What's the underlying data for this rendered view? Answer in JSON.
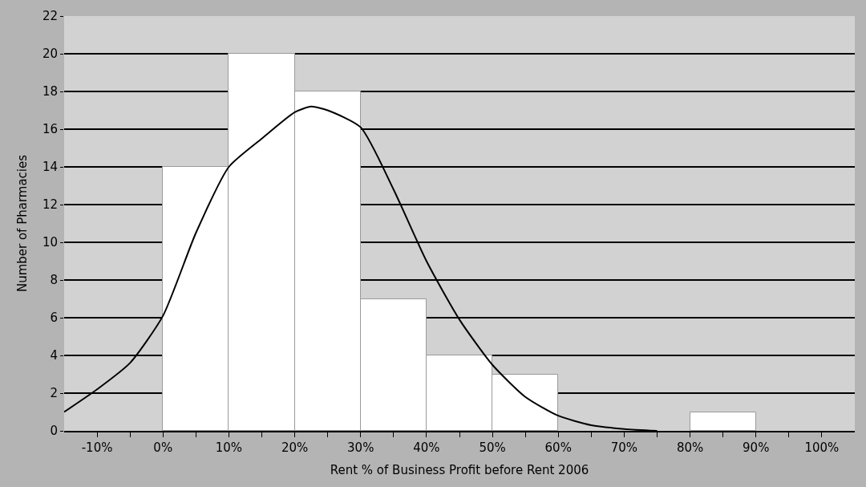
{
  "chart_data": {
    "type": "histogram",
    "xlabel": "Rent % of Business Profit before Rent 2006",
    "ylabel": "Number of Pharmacies",
    "bins": [
      0,
      10,
      20,
      30,
      40,
      50,
      60,
      70,
      80,
      90
    ],
    "series": [
      {
        "color": "#ffffff",
        "values": [
          14,
          20,
          18,
          7,
          4,
          3,
          0,
          0,
          1
        ]
      },
      {
        "type": "line",
        "color": "#000000",
        "x": [
          -15,
          -10,
          -5,
          0,
          5,
          10,
          15,
          20,
          22.5,
          25,
          30,
          35,
          40,
          45,
          50,
          55,
          60,
          65,
          70,
          75
        ],
        "values": [
          1.0,
          2.2,
          3.6,
          6.1,
          10.5,
          14,
          15.5,
          16.9,
          17.2,
          17.0,
          16.1,
          12.8,
          9.0,
          5.9,
          3.5,
          1.8,
          0.8,
          0.3,
          0.1,
          0
        ]
      }
    ],
    "xlim": [
      -15,
      105
    ],
    "xticks": [
      {
        "value": -10,
        "label": "-10%"
      },
      {
        "value": -5,
        "label": null
      },
      {
        "value": 0,
        "label": "0%"
      },
      {
        "value": 5,
        "label": null
      },
      {
        "value": 10,
        "label": "10%"
      },
      {
        "value": 15,
        "label": null
      },
      {
        "value": 20,
        "label": "20%"
      },
      {
        "value": 25,
        "label": null
      },
      {
        "value": 30,
        "label": "30%"
      },
      {
        "value": 35,
        "label": null
      },
      {
        "value": 40,
        "label": "40%"
      },
      {
        "value": 45,
        "label": null
      },
      {
        "value": 50,
        "label": "50%"
      },
      {
        "value": 55,
        "label": null
      },
      {
        "value": 60,
        "label": "60%"
      },
      {
        "value": 65,
        "label": null
      },
      {
        "value": 70,
        "label": "70%"
      },
      {
        "value": 75,
        "label": null
      },
      {
        "value": 80,
        "label": "80%"
      },
      {
        "value": 85,
        "label": null
      },
      {
        "value": 90,
        "label": "90%"
      },
      {
        "value": 95,
        "label": null
      },
      {
        "value": 100,
        "label": "100%"
      }
    ],
    "ylim": [
      0,
      22
    ],
    "yticks": [
      0,
      2,
      4,
      6,
      8,
      10,
      12,
      14,
      16,
      18,
      20,
      22
    ],
    "grid": "y",
    "marker": "none",
    "line_style": "solid"
  }
}
